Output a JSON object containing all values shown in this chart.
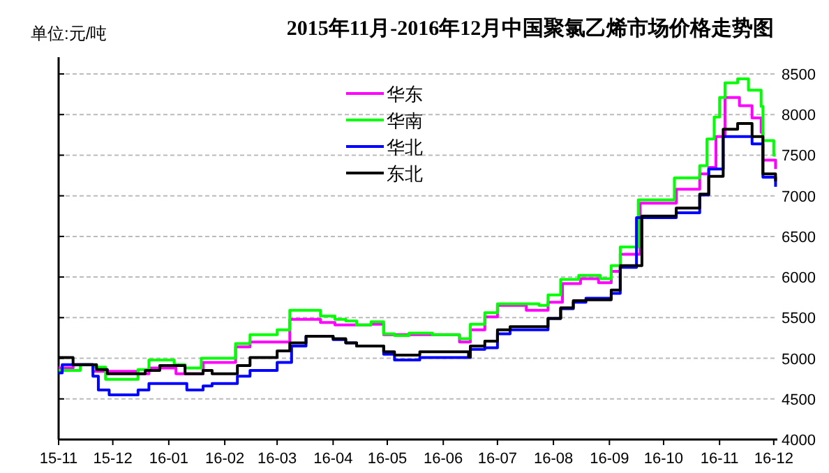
{
  "chart_data": {
    "type": "step",
    "title": "2015年11月-2016年12月中国聚氯乙烯市场价格走势图",
    "annotations": [
      "单位:元/吨"
    ],
    "xlim": [
      "2015-11-01",
      "2016-12-03"
    ],
    "ylim": [
      4000,
      8500
    ],
    "yticks": [
      4000,
      4500,
      5000,
      5500,
      6000,
      6500,
      7000,
      7500,
      8000,
      8500
    ],
    "xticks": [
      {
        "value": "2015-11-01",
        "label": "15-11"
      },
      {
        "value": "2015-12-01",
        "label": "15-12"
      },
      {
        "value": "2016-01-01",
        "label": "16-01"
      },
      {
        "value": "2016-02-01",
        "label": "16-02"
      },
      {
        "value": "2016-03-01",
        "label": "16-03"
      },
      {
        "value": "2016-04-01",
        "label": "16-04"
      },
      {
        "value": "2016-05-01",
        "label": "16-05"
      },
      {
        "value": "2016-06-01",
        "label": "16-06"
      },
      {
        "value": "2016-07-01",
        "label": "16-07"
      },
      {
        "value": "2016-08-01",
        "label": "16-08"
      },
      {
        "value": "2016-09-01",
        "label": "16-09"
      },
      {
        "value": "2016-10-01",
        "label": "16-10"
      },
      {
        "value": "2016-11-01",
        "label": "16-11"
      },
      {
        "value": "2016-12-01",
        "label": "16-12"
      }
    ],
    "grid": "y",
    "legend": "top",
    "line_style": "solid",
    "series": [
      {
        "name": "华东",
        "color": "#ff00ff",
        "x": [
          "2015-11-01",
          "2015-11-09",
          "2015-11-20",
          "2015-12-15",
          "2015-12-21",
          "2016-01-05",
          "2016-01-20",
          "2016-02-07",
          "2016-02-15",
          "2016-03-08",
          "2016-03-25",
          "2016-04-02",
          "2016-04-22",
          "2016-04-29",
          "2016-06-10",
          "2016-06-16",
          "2016-06-24",
          "2016-07-01",
          "2016-07-17",
          "2016-07-29",
          "2016-08-06",
          "2016-08-16",
          "2016-08-26",
          "2016-09-02",
          "2016-09-07",
          "2016-09-18",
          "2016-10-08",
          "2016-10-21",
          "2016-10-26",
          "2016-10-30",
          "2016-11-04",
          "2016-11-12",
          "2016-11-19",
          "2016-11-24",
          "2016-11-25",
          "2016-12-02"
        ],
        "values": [
          4880,
          4920,
          4840,
          4810,
          4880,
          4810,
          4950,
          5140,
          5200,
          5480,
          5440,
          5410,
          5420,
          5290,
          5200,
          5350,
          5510,
          5650,
          5590,
          5690,
          5920,
          5980,
          5930,
          6070,
          6280,
          6910,
          7080,
          7270,
          7350,
          7730,
          8210,
          8110,
          7960,
          7780,
          7440,
          7330
        ]
      },
      {
        "name": "华南",
        "color": "#00ff00",
        "x": [
          "2015-11-01",
          "2015-11-13",
          "2015-11-20",
          "2015-11-27",
          "2015-12-15",
          "2015-12-21",
          "2016-01-04",
          "2016-01-10",
          "2016-01-19",
          "2016-02-07",
          "2016-02-15",
          "2016-03-01",
          "2016-03-08",
          "2016-03-25",
          "2016-04-02",
          "2016-04-08",
          "2016-04-14",
          "2016-04-22",
          "2016-04-29",
          "2016-05-05",
          "2016-05-13",
          "2016-05-26",
          "2016-06-10",
          "2016-06-16",
          "2016-06-24",
          "2016-07-01",
          "2016-07-24",
          "2016-07-29",
          "2016-08-05",
          "2016-08-15",
          "2016-08-27",
          "2016-09-02",
          "2016-09-07",
          "2016-09-17",
          "2016-10-07",
          "2016-10-21",
          "2016-10-25",
          "2016-10-29",
          "2016-11-01",
          "2016-11-04",
          "2016-11-11",
          "2016-11-17",
          "2016-11-24",
          "2016-11-25",
          "2016-12-01",
          "2016-12-02"
        ],
        "values": [
          4850,
          4920,
          4890,
          4740,
          4860,
          4980,
          4920,
          4880,
          5000,
          5180,
          5290,
          5350,
          5590,
          5520,
          5480,
          5460,
          5410,
          5450,
          5300,
          5280,
          5310,
          5290,
          5240,
          5420,
          5560,
          5670,
          5650,
          5780,
          5970,
          6020,
          5980,
          6140,
          6370,
          6950,
          7220,
          7370,
          7700,
          7970,
          8210,
          8390,
          8440,
          8300,
          8100,
          7680,
          7500,
          7500
        ]
      },
      {
        "name": "华北",
        "color": "#0000ff",
        "x": [
          "2015-11-01",
          "2015-11-03",
          "2015-11-20",
          "2015-11-23",
          "2015-11-29",
          "2015-12-15",
          "2015-12-21",
          "2016-01-11",
          "2016-01-20",
          "2016-01-25",
          "2016-02-08",
          "2016-02-15",
          "2016-03-01",
          "2016-03-09",
          "2016-03-17",
          "2016-04-01",
          "2016-04-08",
          "2016-04-14",
          "2016-04-29",
          "2016-05-05",
          "2016-05-19",
          "2016-06-16",
          "2016-06-24",
          "2016-07-01",
          "2016-07-08",
          "2016-07-29",
          "2016-08-05",
          "2016-08-12",
          "2016-08-19",
          "2016-09-02",
          "2016-09-07",
          "2016-09-16",
          "2016-10-08",
          "2016-10-21",
          "2016-10-26",
          "2016-11-03",
          "2016-11-19",
          "2016-11-25",
          "2016-12-02"
        ],
        "values": [
          4820,
          4920,
          4780,
          4610,
          4550,
          4610,
          4690,
          4610,
          4660,
          4690,
          4780,
          4850,
          4950,
          5150,
          5270,
          5230,
          5190,
          5150,
          5050,
          4980,
          5010,
          5110,
          5130,
          5300,
          5350,
          5490,
          5610,
          5690,
          5740,
          5800,
          6120,
          6730,
          6790,
          7010,
          7330,
          7730,
          7640,
          7230,
          7110
        ]
      },
      {
        "name": "东北",
        "color": "#000000",
        "x": [
          "2015-11-01",
          "2015-11-09",
          "2015-11-22",
          "2015-11-28",
          "2015-12-19",
          "2015-12-27",
          "2016-01-10",
          "2016-01-20",
          "2016-01-25",
          "2016-02-08",
          "2016-02-15",
          "2016-03-01",
          "2016-03-08",
          "2016-03-17",
          "2016-04-01",
          "2016-04-08",
          "2016-04-14",
          "2016-04-29",
          "2016-05-05",
          "2016-05-19",
          "2016-06-15",
          "2016-06-16",
          "2016-06-24",
          "2016-07-01",
          "2016-07-08",
          "2016-07-29",
          "2016-08-05",
          "2016-08-12",
          "2016-08-19",
          "2016-09-02",
          "2016-09-07",
          "2016-09-19",
          "2016-10-08",
          "2016-10-21",
          "2016-10-26",
          "2016-11-03",
          "2016-11-11",
          "2016-11-19",
          "2016-11-25",
          "2016-12-02"
        ],
        "values": [
          5010,
          4920,
          4860,
          4810,
          4850,
          4910,
          4810,
          4850,
          4810,
          4910,
          5010,
          5090,
          5190,
          5270,
          5240,
          5190,
          5150,
          5080,
          5040,
          5080,
          5020,
          5150,
          5210,
          5350,
          5390,
          5490,
          5620,
          5710,
          5720,
          5840,
          6140,
          6750,
          6850,
          7020,
          7240,
          7820,
          7890,
          7730,
          7270,
          7180
        ]
      }
    ]
  }
}
